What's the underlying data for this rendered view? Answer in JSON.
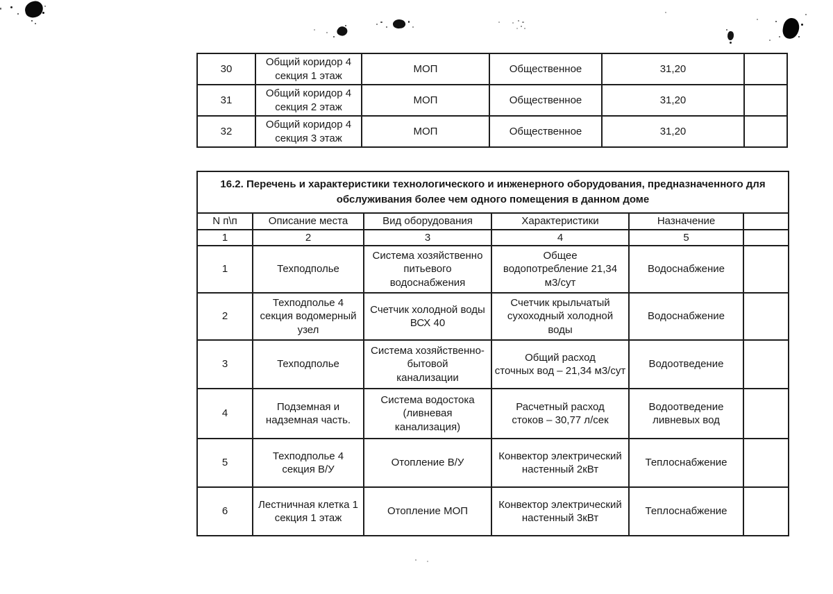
{
  "page": {
    "background": "#ffffff",
    "text_color": "#1a1a1a",
    "border_color": "#1d1d1d"
  },
  "table1": {
    "rows": [
      {
        "num": "30",
        "place": "Общий коридор 4\nсекция 1 этаж",
        "kind": "МОП",
        "category": "Общественное",
        "area": "31,20",
        "extra": ""
      },
      {
        "num": "31",
        "place": "Общий коридор 4\nсекция 2 этаж",
        "kind": "МОП",
        "category": "Общественное",
        "area": "31,20",
        "extra": ""
      },
      {
        "num": "32",
        "place": "Общий коридор 4\nсекция 3 этаж",
        "kind": "МОП",
        "category": "Общественное",
        "area": "31,20",
        "extra": ""
      }
    ]
  },
  "table2": {
    "title": "16.2. Перечень и характеристики технологического и инженерного оборудования, предназначенного для обслуживания более чем одного помещения в данном доме",
    "headers": [
      "N п\\п",
      "Описание места",
      "Вид оборудования",
      "Характеристики",
      "Назначение",
      ""
    ],
    "col_numbers": [
      "1",
      "2",
      "3",
      "4",
      "5",
      ""
    ],
    "rows": [
      {
        "num": "1",
        "place": "Техподполье",
        "equipment": "Система хозяйственно\nпитьевого\nводоснабжения",
        "characteristics": "Общее\nводопотребление 21,34\nм3/сут",
        "purpose": "Водоснабжение",
        "extra": ""
      },
      {
        "num": "2",
        "place": "Техподполье 4\nсекция водомерный\nузел",
        "equipment": "Счетчик холодной воды\nВСХ 40",
        "characteristics": "Счетчик крыльчатый\nсухоходный холодной воды",
        "purpose": "Водоснабжение",
        "extra": ""
      },
      {
        "num": "3",
        "place": "Техподполье",
        "equipment": "Система хозяйственно-\nбытовой\nканализации",
        "characteristics": "Общий расход\nсточных вод – 21,34 м3/сут",
        "purpose": "Водоотведение",
        "extra": ""
      },
      {
        "num": "4",
        "place": "Подземная и\nнадземная часть.",
        "equipment": "Система водостока\n(ливневая\nканализация)",
        "characteristics": "Расчетный расход\nстоков – 30,77 л/сек",
        "purpose": "Водоотведение\nливневых вод",
        "extra": ""
      },
      {
        "num": "5",
        "place": "Техподполье 4\nсекция В/У",
        "equipment": "Отопление В/У",
        "characteristics": "Конвектор электрический\nнастенный  2кВт",
        "purpose": "Теплоснабжение",
        "extra": ""
      },
      {
        "num": "6",
        "place": "Лестничная клетка 1\nсекция 1 этаж",
        "equipment": "Отопление МОП",
        "characteristics": "Конвектор электрический\nнастенный  3кВт",
        "purpose": "Теплоснабжение",
        "extra": ""
      }
    ]
  }
}
